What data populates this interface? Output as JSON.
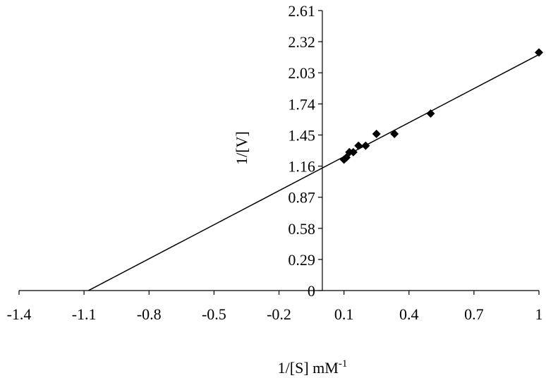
{
  "chart_data": {
    "type": "scatter",
    "title": "",
    "xlabel": "1/[S] mM",
    "xlabel_superscript": "-1",
    "ylabel": "1/[V]",
    "xlim": [
      -1.4,
      1
    ],
    "ylim": [
      0,
      2.61
    ],
    "x_ticks": [
      -1.4,
      -1.1,
      -0.8,
      -0.5,
      -0.2,
      0.1,
      0.4,
      0.7,
      1
    ],
    "x_tick_labels": [
      "-1.4",
      "-1.1",
      "-0.8",
      "-0.5",
      "-0.2",
      "0.1",
      "0.4",
      "0.7",
      "1"
    ],
    "y_ticks": [
      0,
      0.29,
      0.58,
      0.87,
      1.16,
      1.45,
      1.74,
      2.03,
      2.32,
      2.61
    ],
    "y_tick_labels": [
      "0",
      "0.29",
      "0.58",
      "0.87",
      "1.16",
      "1.45",
      "1.74",
      "2.03",
      "2.32",
      "2.61"
    ],
    "grid": false,
    "legend": "none",
    "marker": "diamond",
    "series": [
      {
        "points": [
          {
            "x": 0.1,
            "y": 1.22
          },
          {
            "x": 0.111,
            "y": 1.24
          },
          {
            "x": 0.125,
            "y": 1.29
          },
          {
            "x": 0.143,
            "y": 1.29
          },
          {
            "x": 0.167,
            "y": 1.35
          },
          {
            "x": 0.2,
            "y": 1.35
          },
          {
            "x": 0.25,
            "y": 1.46
          },
          {
            "x": 0.333,
            "y": 1.46
          },
          {
            "x": 0.5,
            "y": 1.65
          },
          {
            "x": 1.0,
            "y": 2.22
          }
        ]
      }
    ],
    "trendline": {
      "x": [
        -1.08,
        1.0
      ],
      "y": [
        0,
        2.2
      ]
    },
    "colors": {
      "axis": "#000000",
      "line": "#000000",
      "marker": "#000000"
    }
  }
}
